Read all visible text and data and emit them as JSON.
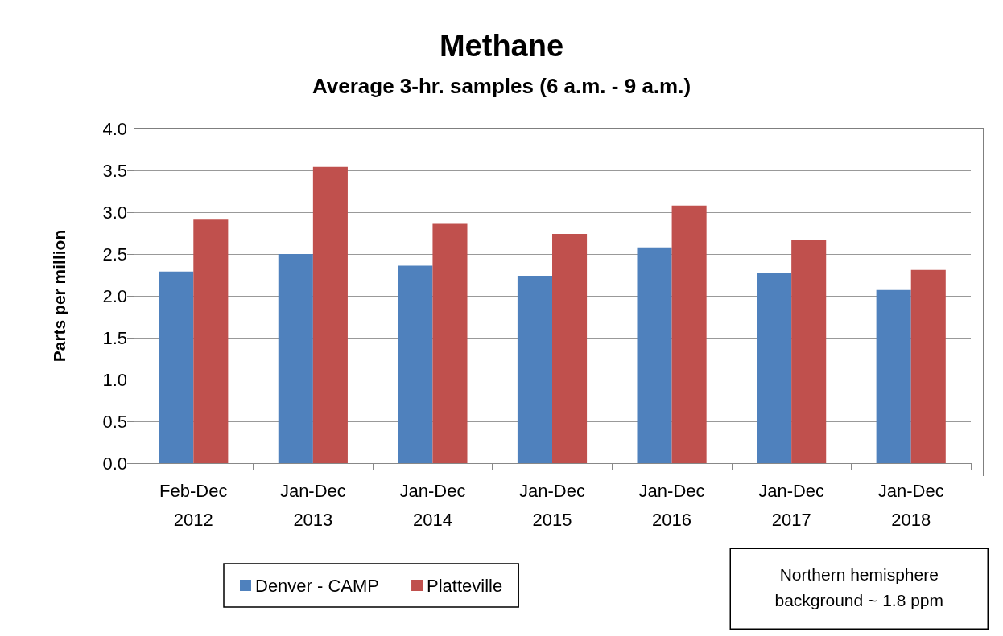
{
  "chart_data": {
    "type": "bar",
    "title": "Methane",
    "subtitle": "Average 3-hr. samples (6 a.m. - 9 a.m.)",
    "ylabel": "Parts per million",
    "categories": [
      "Feb-Dec\n2012",
      "Jan-Dec\n2013",
      "Jan-Dec\n2014",
      "Jan-Dec\n2015",
      "Jan-Dec\n2016",
      "Jan-Dec\n2017",
      "Jan-Dec\n2018"
    ],
    "series": [
      {
        "name": "Denver - CAMP",
        "color": "#4f81bd",
        "values": [
          2.29,
          2.5,
          2.36,
          2.24,
          2.58,
          2.28,
          2.07
        ]
      },
      {
        "name": "Platteville",
        "color": "#c0504d",
        "values": [
          2.92,
          3.54,
          2.87,
          2.74,
          3.08,
          2.67,
          2.31
        ]
      }
    ],
    "ylim": [
      0,
      4
    ],
    "yticks": [
      {
        "value": 0,
        "label": "0.0"
      },
      0.5,
      {
        "value": 1,
        "label": "1.0"
      },
      1.5,
      {
        "value": 2,
        "label": "2.0"
      },
      2.5,
      {
        "value": 3,
        "label": "3.0"
      },
      3.5,
      {
        "value": 4,
        "label": "4.0"
      }
    ],
    "grid": "y",
    "legend": "bottom",
    "annotations": [
      "Northern hemisphere\nbackground ~ 1.8 ppm"
    ]
  }
}
